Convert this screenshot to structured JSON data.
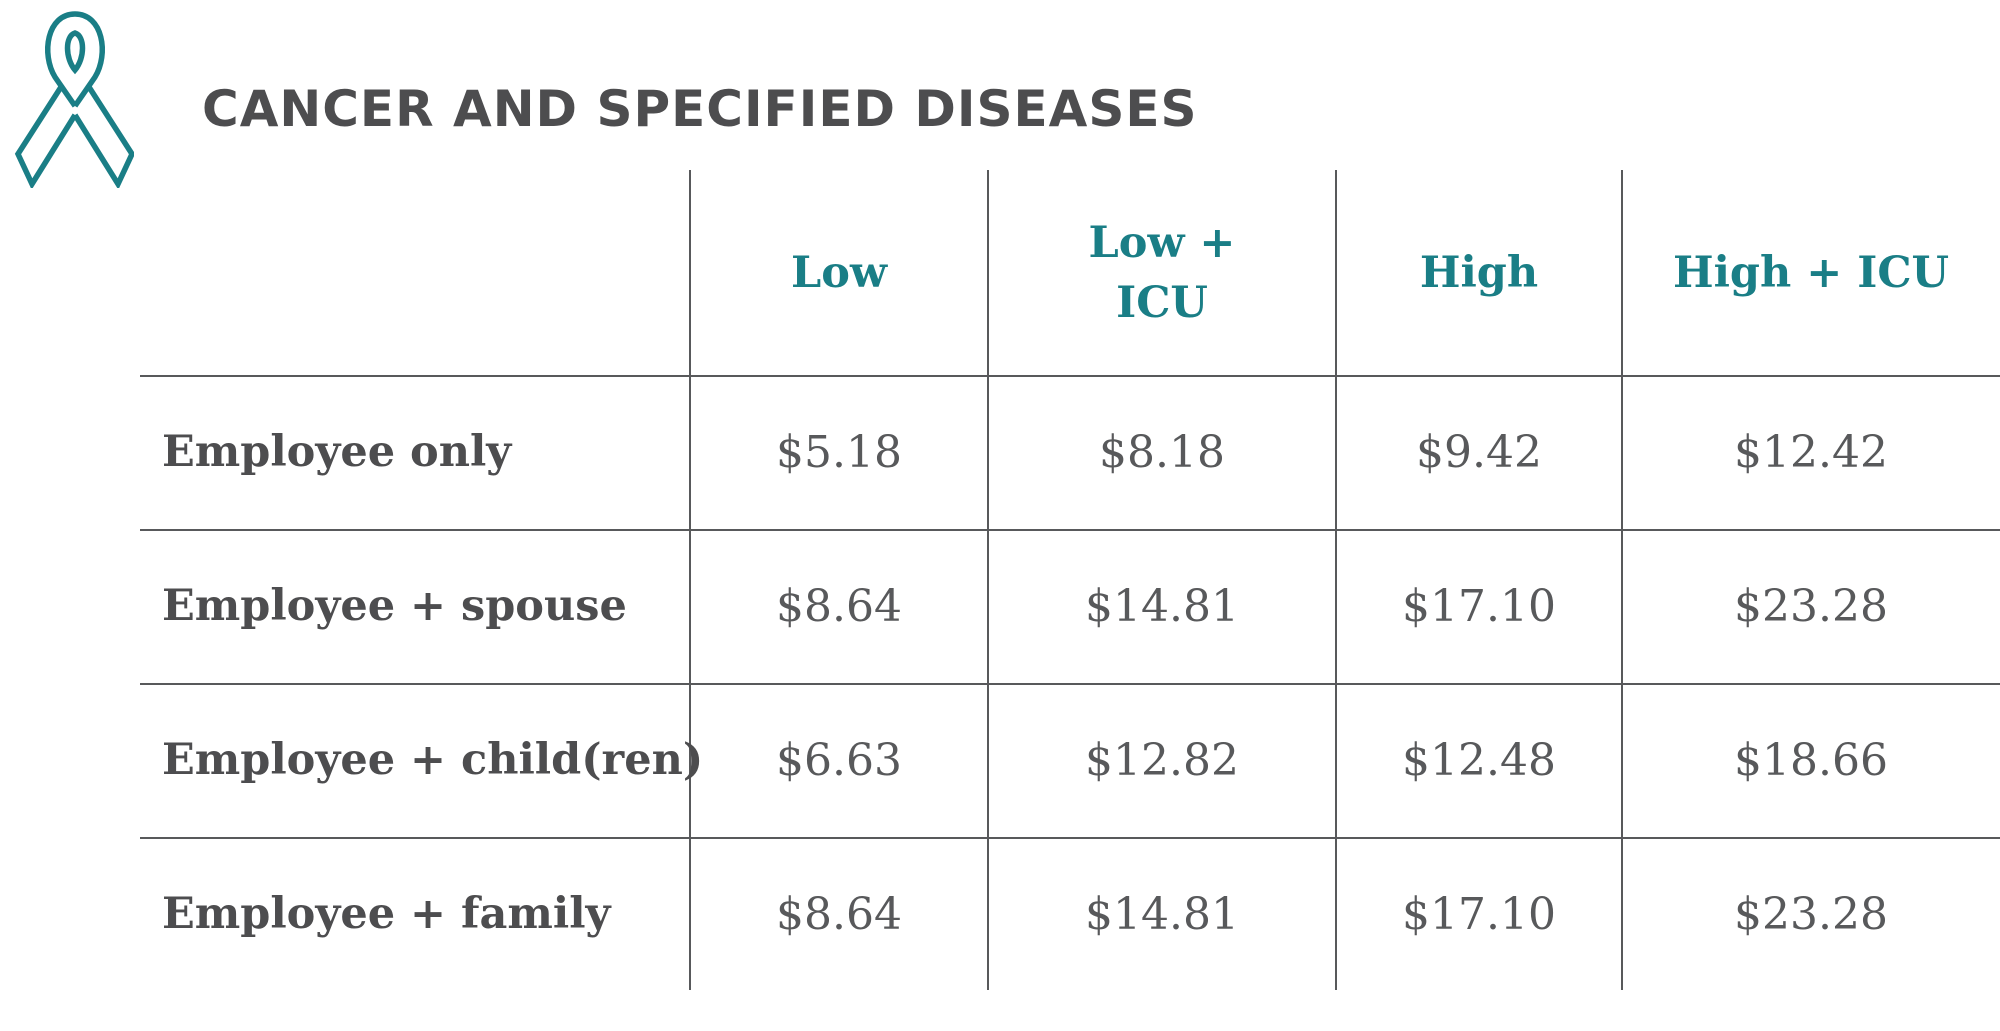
{
  "title": "CANCER AND SPECIFIED DISEASES",
  "icon": "awareness-ribbon-icon",
  "colors": {
    "accent": "#1a7e86",
    "text": "#4d4d4f",
    "lines": "#58595b"
  },
  "table": {
    "columns": [
      "Low",
      "Low + ICU",
      "High",
      "High + ICU"
    ],
    "rows": [
      {
        "label": "Employee only",
        "values": [
          "$5.18",
          "$8.18",
          "$9.42",
          "$12.42"
        ]
      },
      {
        "label": "Employee + spouse",
        "values": [
          "$8.64",
          "$14.81",
          "$17.10",
          "$23.28"
        ]
      },
      {
        "label": "Employee + child(ren)",
        "values": [
          "$6.63",
          "$12.82",
          "$12.48",
          "$18.66"
        ]
      },
      {
        "label": "Employee + family",
        "values": [
          "$8.64",
          "$14.81",
          "$17.10",
          "$23.28"
        ]
      }
    ]
  }
}
